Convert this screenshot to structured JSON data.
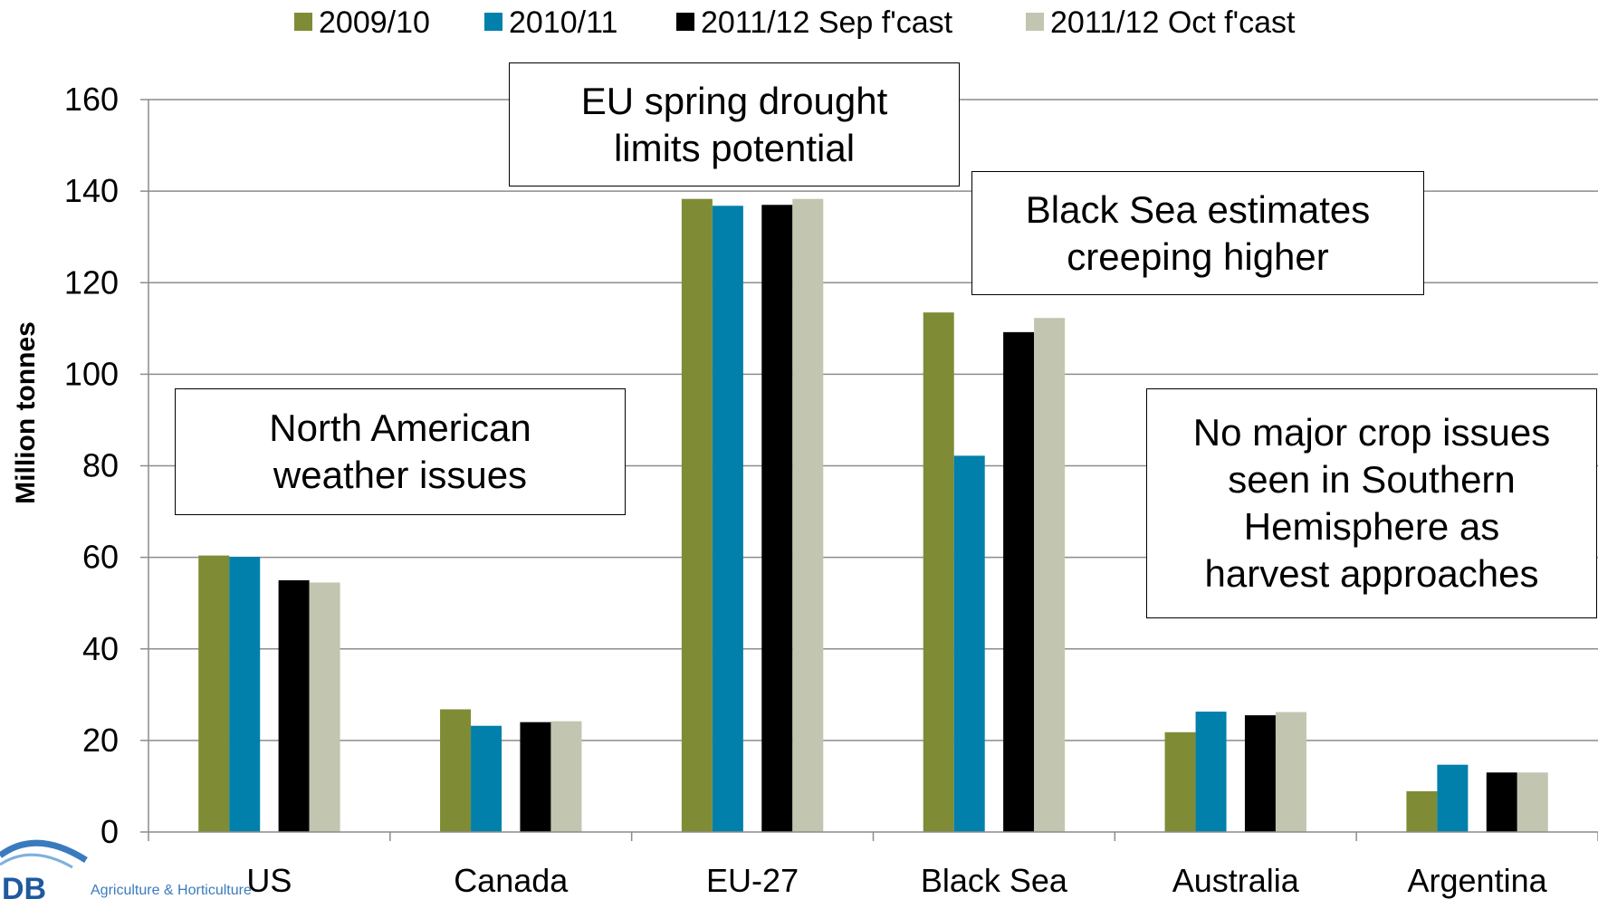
{
  "chart_data": {
    "type": "bar",
    "title": "",
    "xlabel": "",
    "ylabel": "Million tonnes",
    "ylim": [
      0,
      160
    ],
    "yticks": [
      0,
      20,
      40,
      60,
      80,
      100,
      120,
      140,
      160
    ],
    "grid": true,
    "legend_position": "top",
    "categories": [
      "US",
      "Canada",
      "EU-27",
      "Black Sea",
      "Australia",
      "Argentina"
    ],
    "series": [
      {
        "name": "2009/10",
        "color": "#7f8c35",
        "values": [
          60.4,
          26.8,
          138.3,
          113.5,
          21.8,
          8.9
        ]
      },
      {
        "name": "2010/11",
        "color": "#0080ab",
        "values": [
          60.1,
          23.2,
          136.8,
          82.2,
          26.3,
          14.7
        ]
      },
      {
        "name": "2011/12 Sep f'cast",
        "color": "#000000",
        "values": [
          55.0,
          24.0,
          137.0,
          109.2,
          25.5,
          13.0
        ]
      },
      {
        "name": "2011/12 Oct f'cast",
        "color": "#c2c5b0",
        "values": [
          54.5,
          24.2,
          138.3,
          112.3,
          26.2,
          13.0
        ]
      }
    ],
    "annotations": [
      {
        "id": "north-america",
        "lines": [
          "North American",
          "weather issues"
        ]
      },
      {
        "id": "eu",
        "lines": [
          "EU spring drought",
          "limits potential"
        ]
      },
      {
        "id": "black-sea",
        "lines": [
          "Black Sea estimates",
          "creeping higher"
        ]
      },
      {
        "id": "southern",
        "lines": [
          "No major crop issues",
          "seen in Southern",
          "Hemisphere as",
          "harvest approaches"
        ]
      }
    ]
  },
  "logo": {
    "text": "Agriculture & Horticulture",
    "mark_text": "DB"
  }
}
